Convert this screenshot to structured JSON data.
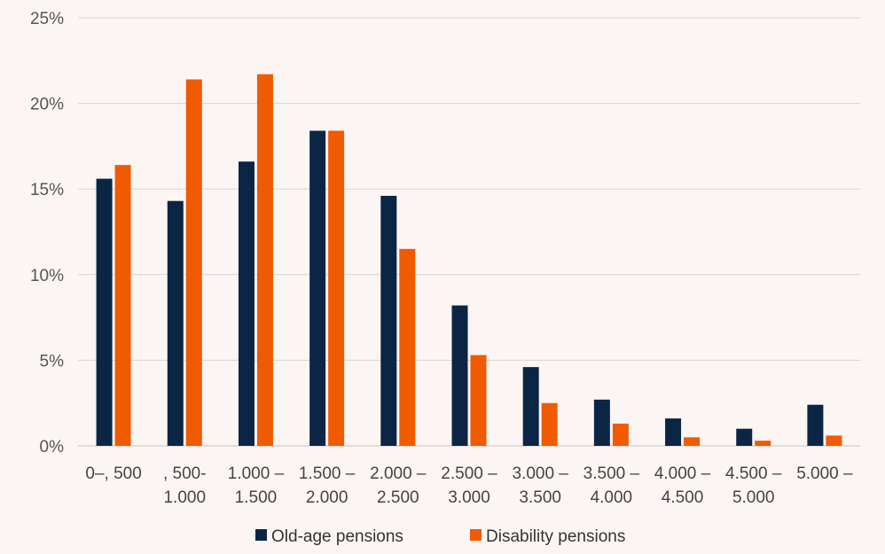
{
  "colors": {
    "background": "#fbf6f3",
    "old_age": "#0b2545",
    "disability": "#f05a00"
  },
  "chart_data": {
    "type": "bar",
    "title": "",
    "xlabel": "",
    "ylabel": "",
    "ylim": [
      0,
      25
    ],
    "y_ticks": [
      "0%",
      "5%",
      "10%",
      "15%",
      "20%",
      "25%"
    ],
    "y_tick_values": [
      0,
      5,
      10,
      15,
      20,
      25
    ],
    "grid": true,
    "legend_position": "bottom-center",
    "categories": [
      [
        "0–, 500"
      ],
      [
        ", 500-",
        "1.000"
      ],
      [
        "1.000 –",
        "1.500"
      ],
      [
        "1.500 –",
        "2.000"
      ],
      [
        "2.000 –",
        "2.500"
      ],
      [
        "2.500 –",
        "3.000"
      ],
      [
        "3.000 –",
        "3.500"
      ],
      [
        "3.500 –",
        "4.000"
      ],
      [
        "4.000 –",
        "4.500"
      ],
      [
        "4.500 –",
        "5.000"
      ],
      [
        "5.000 –"
      ]
    ],
    "series": [
      {
        "name": "Old-age pensions",
        "color_key": "old_age",
        "values": [
          15.6,
          14.3,
          16.6,
          18.4,
          14.6,
          8.2,
          4.6,
          2.7,
          1.6,
          1.0,
          2.4
        ]
      },
      {
        "name": "Disability pensions",
        "color_key": "disability",
        "values": [
          16.4,
          21.4,
          21.7,
          18.4,
          11.5,
          5.3,
          2.5,
          1.3,
          0.5,
          0.3,
          0.6
        ]
      }
    ]
  }
}
